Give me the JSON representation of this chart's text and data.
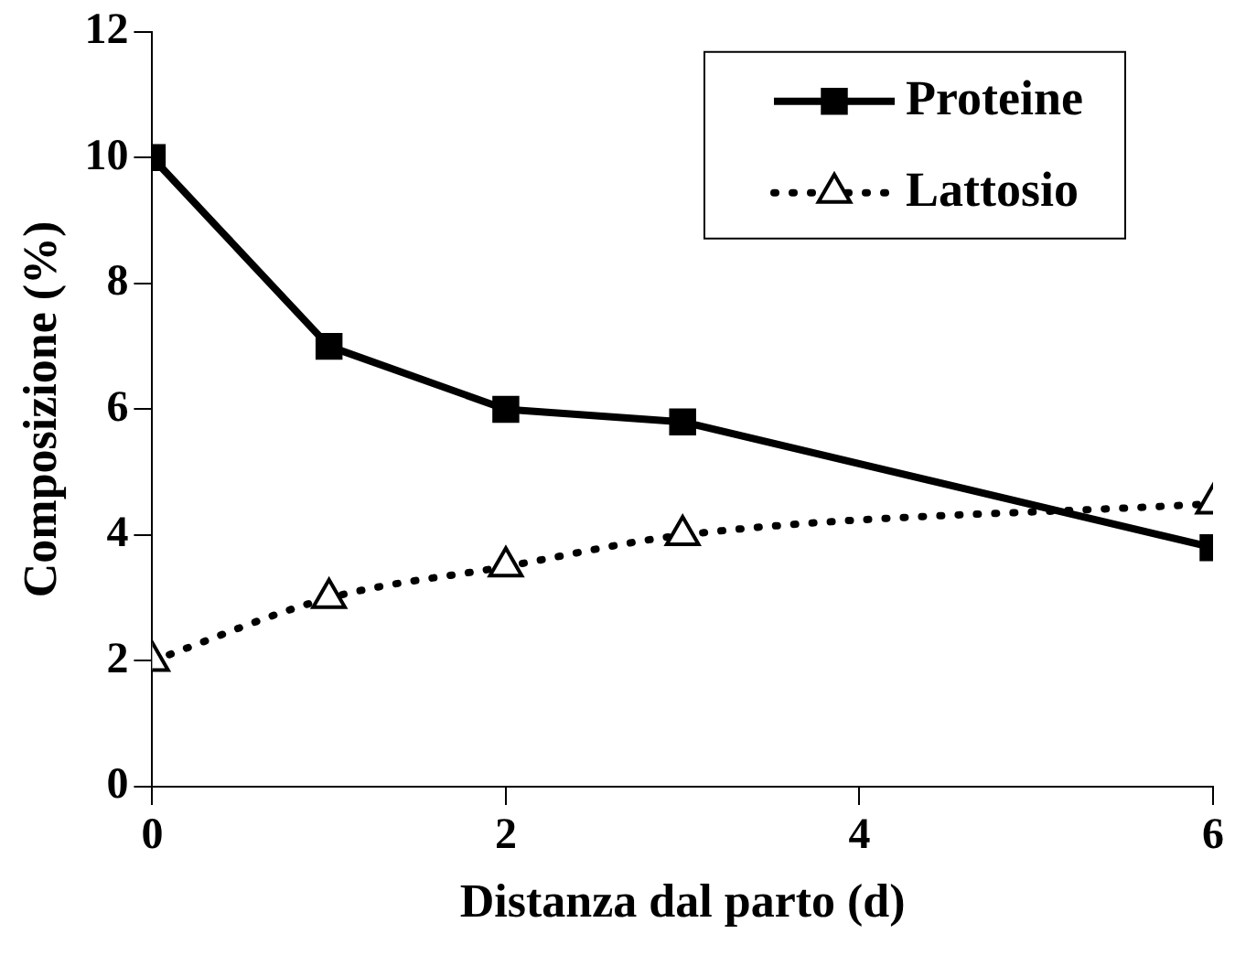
{
  "chart_data": {
    "type": "line",
    "xlabel": "Distanza dal parto (d)",
    "ylabel": "Composizione (%)",
    "x": [
      0,
      1,
      2,
      3,
      6
    ],
    "series": [
      {
        "name": "Proteine",
        "color": "#000000",
        "values": [
          10,
          7,
          6,
          5.8,
          3.8
        ],
        "marker": "square",
        "line_style": "solid"
      },
      {
        "name": "Lattosio",
        "color": "#000000",
        "values": [
          2,
          3,
          3.5,
          4,
          4.5
        ],
        "marker": "triangle",
        "line_style": "dotted"
      }
    ],
    "xlim": [
      0,
      6
    ],
    "xticks": [
      0,
      2,
      4,
      6
    ],
    "ylim": [
      0,
      12
    ],
    "yticks": [
      0,
      2,
      4,
      6,
      8,
      10,
      12
    ],
    "grid": false,
    "legend": "top right"
  }
}
